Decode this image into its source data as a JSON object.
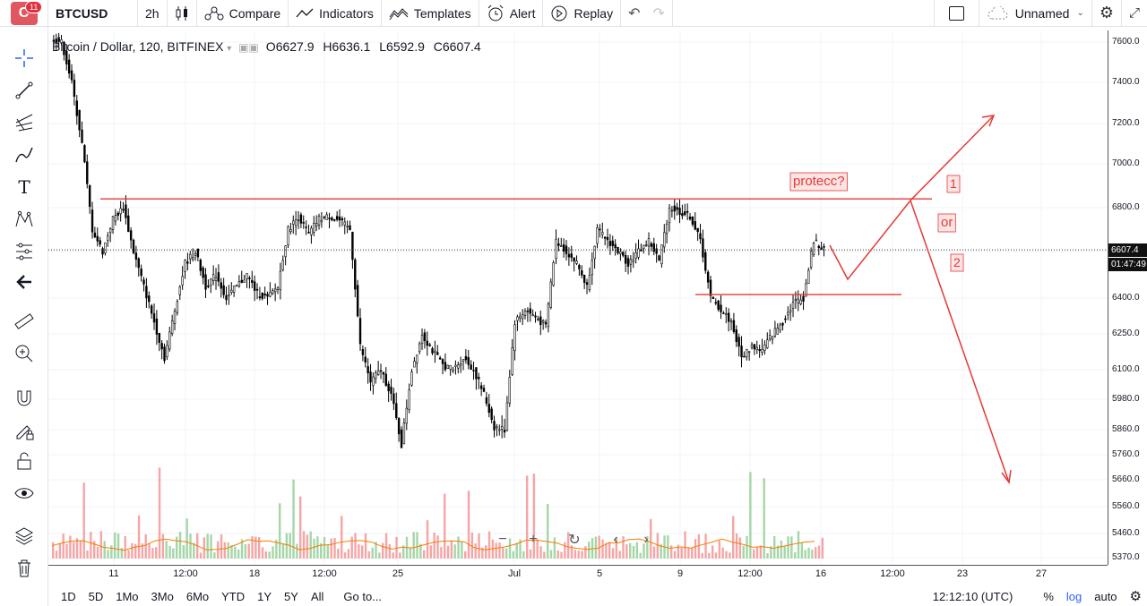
{
  "topbar": {
    "notifications": "11",
    "symbol": "BTCUSD",
    "interval": "2h",
    "compare": "Compare",
    "indicators": "Indicators",
    "templates": "Templates",
    "alert": "Alert",
    "replay": "Replay",
    "layout_name": "Unnamed"
  },
  "legend": {
    "title": "Bitcoin / Dollar, 120, BITFINEX",
    "o_key": "O",
    "o": "6627.9",
    "h_key": "H",
    "h": "6636.1",
    "l_key": "L",
    "l": "6592.9",
    "c_key": "C",
    "c": "6607.4"
  },
  "price_axis": {
    "labels": [
      "7600.0",
      "7400.0",
      "7200.0",
      "7000.0",
      "6800.0",
      "6600.0",
      "6400.0",
      "6250.0",
      "6100.0",
      "5980.0",
      "5860.0",
      "5760.0",
      "5660.0",
      "5560.0",
      "5460.0",
      "5370.0"
    ],
    "current_price": "6607.4",
    "countdown": "01:47:49"
  },
  "time_axis": {
    "labels": [
      "11",
      "12:00",
      "18",
      "12:00",
      "25",
      "Jul",
      "5",
      "9",
      "12:00",
      "16",
      "12:00",
      "23",
      "27"
    ]
  },
  "annotations": {
    "protect": "protecc?",
    "one": "1",
    "or": "or",
    "two": "2"
  },
  "bottombar": {
    "ranges": [
      "1D",
      "5D",
      "1Mo",
      "3Mo",
      "6Mo",
      "YTD",
      "1Y",
      "5Y",
      "All"
    ],
    "goto": "Go to...",
    "time": "12:12:10 (UTC)",
    "percent": "%",
    "log": "log",
    "auto": "auto"
  },
  "colors": {
    "accent": "#2962ff",
    "annotation": "#e53935",
    "candle": "#000000",
    "volume_up": "#a5d6a7",
    "volume_down": "#f5a5a5",
    "ma_line": "#f57c00"
  },
  "icons": {
    "lefttools": [
      "crosshair-icon",
      "trend-line-icon",
      "pitchfork-icon",
      "brush-icon",
      "text-icon",
      "pattern-icon",
      "prediction-icon",
      "back-arrow-icon",
      "ruler-icon",
      "zoom-in-icon",
      "magnet-icon",
      "lock-drawing-icon",
      "lock-icon",
      "eye-icon",
      "layers-icon",
      "trash-icon"
    ]
  },
  "chart_data": {
    "type": "candlestick",
    "title": "Bitcoin / Dollar, 120, BITFINEX",
    "ylim": [
      5370,
      7650
    ],
    "x_ticks": [
      "11",
      "12:00",
      "18",
      "12:00",
      "25",
      "Jul",
      "5",
      "9",
      "12:00",
      "16",
      "12:00",
      "23",
      "27"
    ],
    "price_path": [
      [
        0,
        7620
      ],
      [
        2,
        7600
      ],
      [
        3,
        7400
      ],
      [
        4,
        7100
      ],
      [
        5,
        6700
      ],
      [
        6,
        6600
      ],
      [
        7,
        6750
      ],
      [
        8,
        6800
      ],
      [
        9,
        6600
      ],
      [
        10,
        6450
      ],
      [
        11,
        6300
      ],
      [
        12,
        6150
      ],
      [
        13,
        6350
      ],
      [
        14,
        6550
      ],
      [
        15,
        6600
      ],
      [
        16,
        6450
      ],
      [
        17,
        6500
      ],
      [
        18,
        6400
      ],
      [
        19,
        6450
      ],
      [
        20,
        6500
      ],
      [
        21,
        6420
      ],
      [
        22,
        6400
      ],
      [
        23,
        6450
      ],
      [
        24,
        6700
      ],
      [
        25,
        6760
      ],
      [
        26,
        6680
      ],
      [
        27,
        6750
      ],
      [
        28,
        6760
      ],
      [
        29,
        6740
      ],
      [
        30,
        6700
      ],
      [
        31,
        6200
      ],
      [
        32,
        6050
      ],
      [
        33,
        6100
      ],
      [
        34,
        6000
      ],
      [
        35,
        5800
      ],
      [
        36,
        6100
      ],
      [
        37,
        6250
      ],
      [
        38,
        6180
      ],
      [
        39,
        6120
      ],
      [
        40,
        6100
      ],
      [
        41,
        6150
      ],
      [
        42,
        6100
      ],
      [
        43,
        6000
      ],
      [
        44,
        5870
      ],
      [
        45,
        5860
      ],
      [
        46,
        6300
      ],
      [
        47,
        6350
      ],
      [
        48,
        6320
      ],
      [
        49,
        6280
      ],
      [
        50,
        6650
      ],
      [
        51,
        6600
      ],
      [
        52,
        6550
      ],
      [
        53,
        6450
      ],
      [
        54,
        6700
      ],
      [
        55,
        6650
      ],
      [
        56,
        6600
      ],
      [
        57,
        6550
      ],
      [
        58,
        6600
      ],
      [
        59,
        6650
      ],
      [
        60,
        6560
      ],
      [
        61,
        6800
      ],
      [
        62,
        6780
      ],
      [
        63,
        6760
      ],
      [
        64,
        6650
      ],
      [
        65,
        6400
      ],
      [
        66,
        6350
      ],
      [
        67,
        6300
      ],
      [
        68,
        6150
      ],
      [
        69,
        6200
      ],
      [
        70,
        6180
      ],
      [
        71,
        6250
      ],
      [
        72,
        6300
      ],
      [
        73,
        6380
      ],
      [
        74,
        6400
      ],
      [
        75,
        6650
      ],
      [
        76,
        6607
      ]
    ],
    "levels": [
      {
        "name": "resistance",
        "value": 6840
      },
      {
        "name": "support",
        "value": 6415
      }
    ],
    "last_price": 6607.4
  }
}
